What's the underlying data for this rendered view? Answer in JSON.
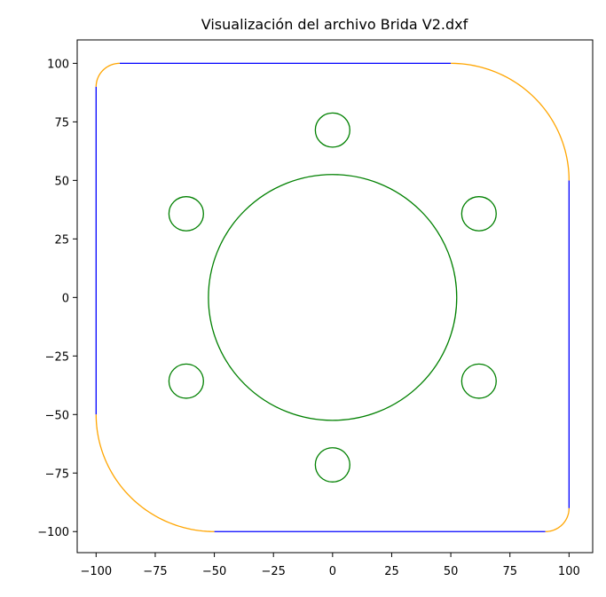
{
  "chart_data": {
    "type": "line",
    "title": "Visualización del archivo Brida V2.dxf",
    "xlabel": "",
    "ylabel": "",
    "xlim": [
      -108,
      110
    ],
    "ylim": [
      -109,
      110
    ],
    "xticks": [
      -100,
      -75,
      -50,
      -25,
      0,
      25,
      50,
      75,
      100
    ],
    "yticks": [
      -100,
      -75,
      -50,
      -25,
      0,
      25,
      50,
      75,
      100
    ],
    "xtick_labels": [
      "−100",
      "−75",
      "−50",
      "−25",
      "0",
      "25",
      "50",
      "75",
      "100"
    ],
    "ytick_labels": [
      "−100",
      "−75",
      "−50",
      "−25",
      "0",
      "25",
      "50",
      "75",
      "100"
    ],
    "grid": false,
    "colors": {
      "lines": "#0000ff",
      "arcs": "#ffa500",
      "circles": "#008000"
    },
    "lines": [
      {
        "x1": -90,
        "y1": 100,
        "x2": 50,
        "y2": 100
      },
      {
        "x1": 100,
        "y1": 50,
        "x2": 100,
        "y2": -90
      },
      {
        "x1": 90,
        "y1": -100,
        "x2": -50,
        "y2": -100
      },
      {
        "x1": -100,
        "y1": -50,
        "x2": -100,
        "y2": 90
      }
    ],
    "arcs": [
      {
        "cx": -90,
        "cy": 90,
        "r": 10,
        "start_deg": 90,
        "end_deg": 180
      },
      {
        "cx": 50,
        "cy": 50,
        "r": 50,
        "start_deg": 0,
        "end_deg": 90
      },
      {
        "cx": 90,
        "cy": -90,
        "r": 10,
        "start_deg": 270,
        "end_deg": 360
      },
      {
        "cx": -50,
        "cy": -50,
        "r": 50,
        "start_deg": 180,
        "end_deg": 270
      }
    ],
    "circles": [
      {
        "cx": 0,
        "cy": 0,
        "r": 52.5
      },
      {
        "cx": 0,
        "cy": 71.5,
        "r": 7.3
      },
      {
        "cx": 61.9,
        "cy": 35.75,
        "r": 7.3
      },
      {
        "cx": 61.9,
        "cy": -35.75,
        "r": 7.3
      },
      {
        "cx": 0,
        "cy": -71.5,
        "r": 7.3
      },
      {
        "cx": -61.9,
        "cy": -35.75,
        "r": 7.3
      },
      {
        "cx": -61.9,
        "cy": 35.75,
        "r": 7.3
      }
    ]
  }
}
